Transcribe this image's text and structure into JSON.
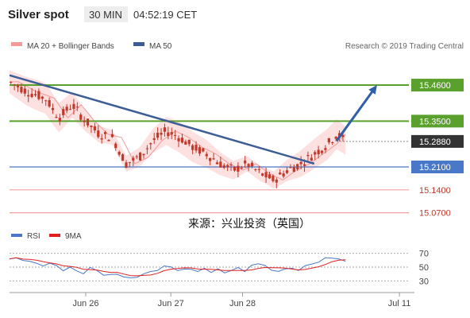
{
  "header": {
    "symbol": "Silver spot",
    "timeframe": "30 MIN",
    "time": "04:52:19 CET"
  },
  "legend": {
    "items": [
      {
        "label": "MA 20 + Bollinger Bands",
        "color": "#f29a9a"
      },
      {
        "label": "MA 50",
        "color": "#3d5d96"
      }
    ],
    "copyright": "Research © 2019 Trading Central"
  },
  "watermark": "来源：兴业投资（英国）",
  "colors": {
    "resistance": "#5aa02c",
    "support_blue": "#4a78c8",
    "support_pink": "#f2a0a0",
    "candle": "#c0392b",
    "trendline": "#3d5d96",
    "bands_fill": "#fde0e0",
    "current_tag": "#333333",
    "rsi": "#4a78c8",
    "rsi_ma": "#e02020"
  },
  "chart_data": {
    "type": "candlestick",
    "title": "Silver spot",
    "x": {
      "categories": [
        "Jun 26",
        "Jun 27",
        "Jun 28",
        "Jul 11"
      ]
    },
    "y": {
      "range": [
        15.04,
        15.55
      ]
    },
    "levels": [
      {
        "value": 15.46,
        "label": "15.4600",
        "kind": "resistance"
      },
      {
        "value": 15.35,
        "label": "15.3500",
        "kind": "resistance"
      },
      {
        "value": 15.288,
        "label": "15.2880",
        "kind": "current"
      },
      {
        "value": 15.21,
        "label": "15.2100",
        "kind": "support"
      },
      {
        "value": 15.14,
        "label": "15.1400",
        "kind": "support"
      },
      {
        "value": 15.07,
        "label": "15.0700",
        "kind": "support"
      }
    ],
    "price_path": [
      {
        "t": 0,
        "v": 15.47
      },
      {
        "t": 4,
        "v": 15.44
      },
      {
        "t": 8,
        "v": 15.42
      },
      {
        "t": 11,
        "v": 15.36
      },
      {
        "t": 14,
        "v": 15.4
      },
      {
        "t": 17,
        "v": 15.35
      },
      {
        "t": 20,
        "v": 15.31
      },
      {
        "t": 23,
        "v": 15.3
      },
      {
        "t": 26,
        "v": 15.22
      },
      {
        "t": 29,
        "v": 15.24
      },
      {
        "t": 32,
        "v": 15.29
      },
      {
        "t": 35,
        "v": 15.32
      },
      {
        "t": 38,
        "v": 15.3
      },
      {
        "t": 41,
        "v": 15.27
      },
      {
        "t": 44,
        "v": 15.25
      },
      {
        "t": 47,
        "v": 15.22
      },
      {
        "t": 50,
        "v": 15.2
      },
      {
        "t": 53,
        "v": 15.22
      },
      {
        "t": 56,
        "v": 15.19
      },
      {
        "t": 59,
        "v": 15.17
      },
      {
        "t": 62,
        "v": 15.2
      },
      {
        "t": 65,
        "v": 15.22
      },
      {
        "t": 68,
        "v": 15.25
      },
      {
        "t": 71,
        "v": 15.28
      },
      {
        "t": 73,
        "v": 15.31
      },
      {
        "t": 75,
        "v": 15.29
      }
    ],
    "trendline": {
      "from": {
        "t": 0,
        "v": 15.49
      },
      "to": {
        "t": 68,
        "v": 15.22
      }
    },
    "forecast_arrow": {
      "from": {
        "t": 73,
        "v": 15.29
      },
      "to": {
        "t": 82,
        "v": 15.46
      }
    },
    "rsi": {
      "label": "RSI",
      "ma_label": "9MA",
      "levels": [
        70,
        50,
        30
      ],
      "range": [
        20,
        80
      ],
      "values": [
        62,
        65,
        58,
        60,
        55,
        52,
        56,
        50,
        47,
        50,
        45,
        42,
        48,
        44,
        40,
        38,
        42,
        36,
        33,
        38,
        41,
        45,
        48,
        52,
        49,
        46,
        50,
        47,
        44,
        48,
        45,
        46,
        42,
        44,
        48,
        46,
        50,
        53,
        50,
        47,
        45,
        48,
        46,
        44,
        50,
        55,
        58,
        62,
        65,
        60,
        58
      ]
    }
  }
}
